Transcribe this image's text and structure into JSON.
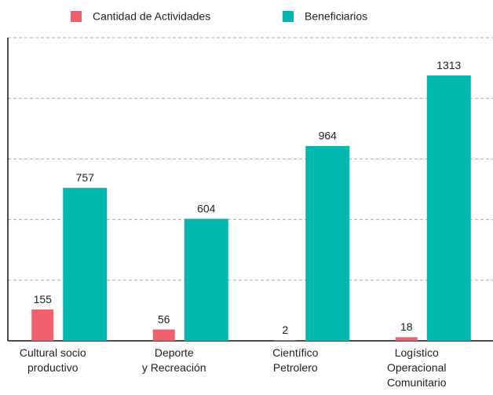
{
  "chart_data": {
    "type": "bar",
    "categories": [
      "Cultural socio\nproductivo",
      "Deporte\ny Recreación",
      "Científico\nPetrolero",
      "Logístico\nOperacional\nComunitario"
    ],
    "series": [
      {
        "name": "Cantidad de Actividades",
        "color": "#f0606a",
        "values": [
          155,
          56,
          2,
          18
        ]
      },
      {
        "name": "Beneficiarios",
        "color": "#00b8b0",
        "values": [
          757,
          604,
          964,
          1313
        ]
      }
    ],
    "ylim": [
      0,
      1500
    ],
    "yticks": [
      0,
      300,
      600,
      900,
      1200,
      1500
    ],
    "grid": true
  }
}
